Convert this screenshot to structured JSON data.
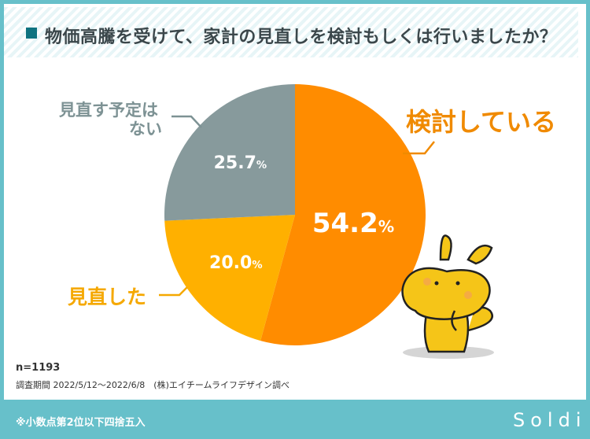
{
  "header": {
    "title": "物価高騰を受けて、家計の見直しを検討もしくは行いましたか？"
  },
  "chart_data": {
    "type": "pie",
    "title": "物価高騰を受けて、家計の見直しを検討もしくは行いましたか？",
    "slices": [
      {
        "label": "検討している",
        "value": 54.2,
        "value_label": "54.2",
        "color": "#ff8c00",
        "label_color": "#f08a00"
      },
      {
        "label": "見直した",
        "value": 20.0,
        "value_label": "20.0",
        "color": "#ffb000",
        "label_color": "#f5a800"
      },
      {
        "label": "見直す予定はない",
        "value": 25.7,
        "value_label": "25.7",
        "color": "#879a9c",
        "label_color": "#7d9294"
      }
    ],
    "unit": "%",
    "start": "top",
    "direction": "clockwise"
  },
  "footer": {
    "n": "n=1193",
    "period": "調査期間 2022/5/12〜2022/6/8　(株)エイチームライフデザイン調べ",
    "note": "※小数点第2位以下四捨五入",
    "logo": "Soldi"
  },
  "labels": {
    "gray_line1": "見直す予定は",
    "gray_line2": "ない"
  }
}
